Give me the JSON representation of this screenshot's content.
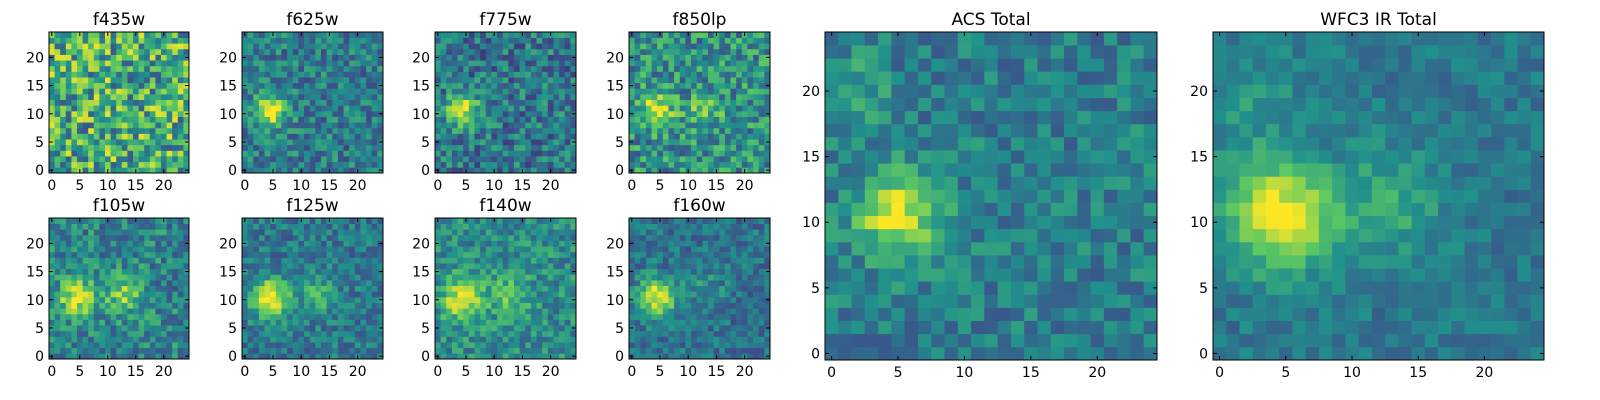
{
  "figure": {
    "colormap": "viridis",
    "colormap_stops": [
      "#440154",
      "#3b528b",
      "#21918c",
      "#5ec962",
      "#fde725"
    ]
  },
  "chart_data": [
    {
      "type": "heatmap",
      "title": "f435w",
      "xlim": [
        0,
        24
      ],
      "ylim": [
        0,
        24
      ],
      "xticks": [
        "0",
        "5",
        "10",
        "15",
        "20"
      ],
      "yticks": [
        "0",
        "5",
        "10",
        "15",
        "20"
      ],
      "grid": false,
      "sources": [],
      "noise": 0.35,
      "base": 0.62,
      "seed": 11
    },
    {
      "type": "heatmap",
      "title": "f625w",
      "xlim": [
        0,
        24
      ],
      "ylim": [
        0,
        24
      ],
      "xticks": [
        "0",
        "5",
        "10",
        "15",
        "20"
      ],
      "yticks": [
        "0",
        "5",
        "10",
        "15",
        "20"
      ],
      "grid": false,
      "sources": [
        {
          "x": 4.5,
          "y": 10.5,
          "amp": 0.6,
          "sigma": 2.0
        }
      ],
      "noise": 0.2,
      "base": 0.42,
      "seed": 23
    },
    {
      "type": "heatmap",
      "title": "f775w",
      "xlim": [
        0,
        24
      ],
      "ylim": [
        0,
        24
      ],
      "xticks": [
        "0",
        "5",
        "10",
        "15",
        "20"
      ],
      "yticks": [
        "0",
        "5",
        "10",
        "15",
        "20"
      ],
      "grid": false,
      "sources": [
        {
          "x": 4.5,
          "y": 10.5,
          "amp": 0.55,
          "sigma": 2.0
        }
      ],
      "noise": 0.22,
      "base": 0.4,
      "seed": 37
    },
    {
      "type": "heatmap",
      "title": "f850lp",
      "xlim": [
        0,
        24
      ],
      "ylim": [
        0,
        24
      ],
      "xticks": [
        "0",
        "5",
        "10",
        "15",
        "20"
      ],
      "yticks": [
        "0",
        "5",
        "10",
        "15",
        "20"
      ],
      "grid": false,
      "sources": [
        {
          "x": 4.5,
          "y": 10.5,
          "amp": 0.45,
          "sigma": 2.0
        },
        {
          "x": 13,
          "y": 11,
          "amp": 0.25,
          "sigma": 2.0
        }
      ],
      "noise": 0.25,
      "base": 0.5,
      "seed": 41
    },
    {
      "type": "heatmap",
      "title": "f105w",
      "xlim": [
        0,
        24
      ],
      "ylim": [
        0,
        24
      ],
      "xticks": [
        "0",
        "5",
        "10",
        "15",
        "20"
      ],
      "yticks": [
        "0",
        "5",
        "10",
        "15",
        "20"
      ],
      "grid": false,
      "sources": [
        {
          "x": 4.5,
          "y": 10.5,
          "amp": 0.5,
          "sigma": 2.3
        },
        {
          "x": 13,
          "y": 11,
          "amp": 0.35,
          "sigma": 2.3
        }
      ],
      "noise": 0.2,
      "base": 0.45,
      "seed": 53
    },
    {
      "type": "heatmap",
      "title": "f125w",
      "xlim": [
        0,
        24
      ],
      "ylim": [
        0,
        24
      ],
      "xticks": [
        "0",
        "5",
        "10",
        "15",
        "20"
      ],
      "yticks": [
        "0",
        "5",
        "10",
        "15",
        "20"
      ],
      "grid": false,
      "sources": [
        {
          "x": 4.5,
          "y": 10.5,
          "amp": 0.6,
          "sigma": 2.4
        },
        {
          "x": 13,
          "y": 11,
          "amp": 0.25,
          "sigma": 2.4
        }
      ],
      "noise": 0.16,
      "base": 0.4,
      "seed": 67
    },
    {
      "type": "heatmap",
      "title": "f140w",
      "xlim": [
        0,
        24
      ],
      "ylim": [
        0,
        24
      ],
      "xticks": [
        "0",
        "5",
        "10",
        "15",
        "20"
      ],
      "yticks": [
        "0",
        "5",
        "10",
        "15",
        "20"
      ],
      "grid": false,
      "sources": [
        {
          "x": 4.5,
          "y": 10.0,
          "amp": 0.5,
          "sigma": 2.5
        },
        {
          "x": 13,
          "y": 11,
          "amp": 0.25,
          "sigma": 2.5
        }
      ],
      "noise": 0.18,
      "base": 0.48,
      "seed": 71
    },
    {
      "type": "heatmap",
      "title": "f160w",
      "xlim": [
        0,
        24
      ],
      "ylim": [
        0,
        24
      ],
      "xticks": [
        "0",
        "5",
        "10",
        "15",
        "20"
      ],
      "yticks": [
        "0",
        "5",
        "10",
        "15",
        "20"
      ],
      "grid": false,
      "sources": [
        {
          "x": 4.5,
          "y": 10.5,
          "amp": 0.6,
          "sigma": 2.3
        },
        {
          "x": 13,
          "y": 12,
          "amp": 0.15,
          "sigma": 2.3
        }
      ],
      "noise": 0.15,
      "base": 0.38,
      "seed": 83
    },
    {
      "type": "heatmap",
      "title": "ACS Total",
      "xlim": [
        0,
        24
      ],
      "ylim": [
        0,
        24
      ],
      "xticks": [
        "0",
        "5",
        "10",
        "15",
        "20"
      ],
      "yticks": [
        "0",
        "5",
        "10",
        "15",
        "20"
      ],
      "grid": false,
      "sources": [
        {
          "x": 5,
          "y": 10.5,
          "amp": 0.55,
          "sigma": 2.2
        },
        {
          "x": 1.5,
          "y": 20,
          "amp": 0.15,
          "sigma": 2.0
        }
      ],
      "noise": 0.15,
      "base": 0.42,
      "seed": 97
    },
    {
      "type": "heatmap",
      "title": "WFC3 IR Total",
      "xlim": [
        0,
        24
      ],
      "ylim": [
        0,
        24
      ],
      "xticks": [
        "0",
        "5",
        "10",
        "15",
        "20"
      ],
      "yticks": [
        "0",
        "5",
        "10",
        "15",
        "20"
      ],
      "grid": false,
      "sources": [
        {
          "x": 4.5,
          "y": 10.5,
          "amp": 0.6,
          "sigma": 2.8
        },
        {
          "x": 13,
          "y": 11.5,
          "amp": 0.22,
          "sigma": 2.8
        },
        {
          "x": 2,
          "y": 19,
          "amp": 0.12,
          "sigma": 3.0
        }
      ],
      "noise": 0.1,
      "base": 0.4,
      "seed": 101
    }
  ]
}
